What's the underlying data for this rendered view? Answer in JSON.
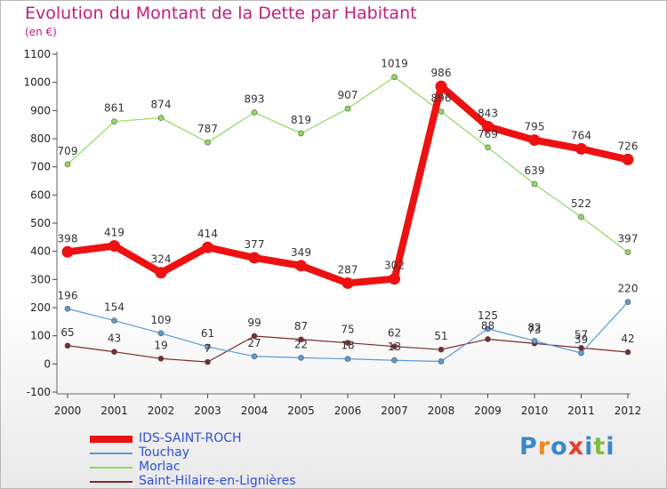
{
  "header": {
    "title": "Evolution du Montant de la Dette par Habitant",
    "unit": "(en €)"
  },
  "brand": {
    "letters": [
      "P",
      "r",
      "o",
      "x",
      "i",
      "t",
      "i"
    ],
    "colors": [
      "#3c87c9",
      "#f08a1e",
      "#3c87c9",
      "#e23e2a",
      "#3c87c9",
      "#7cbf3a",
      "#3c87c9"
    ]
  },
  "chart_data": {
    "type": "line",
    "title": "Evolution du Montant de la Dette par Habitant",
    "subtitle": "(en €)",
    "xlabel": "",
    "ylabel": "",
    "x": [
      "2000",
      "2001",
      "2002",
      "2003",
      "2004",
      "2005",
      "2006",
      "2007",
      "2008",
      "2009",
      "2010",
      "2011",
      "2012"
    ],
    "ylim": [
      -100,
      1100
    ],
    "yticks": [
      -100,
      0,
      100,
      200,
      300,
      400,
      500,
      600,
      700,
      800,
      900,
      1000,
      1100
    ],
    "grid": false,
    "legend": "bottom-left",
    "series": [
      {
        "name": "IDS-SAINT-ROCH",
        "color": "#ee1111",
        "values": [
          398,
          419,
          324,
          414,
          377,
          349,
          287,
          302,
          986,
          843,
          795,
          764,
          726
        ],
        "labels": [
          "398",
          "419",
          "324",
          "414",
          "377",
          "349",
          "287",
          "302",
          "986",
          "843",
          "795",
          "764",
          "726"
        ]
      },
      {
        "name": "Touchay",
        "color": "#5b9bd5",
        "values": [
          196,
          154,
          109,
          61,
          27,
          22,
          18,
          13,
          9,
          125,
          82,
          39,
          220
        ],
        "labels": [
          "196",
          "154",
          "109",
          "61",
          "27",
          "22",
          "18",
          "13",
          "",
          "125",
          "82",
          "39",
          "220"
        ]
      },
      {
        "name": "Morlac",
        "color": "#8fdb5a",
        "values": [
          709,
          861,
          874,
          787,
          893,
          819,
          907,
          1019,
          896,
          769,
          639,
          522,
          397
        ],
        "labels": [
          "709",
          "861",
          "874",
          "787",
          "893",
          "819",
          "907",
          "1019",
          "896",
          "769",
          "639",
          "522",
          "397"
        ]
      },
      {
        "name": "Saint-Hilaire-en-Lignières",
        "color": "#7a2b2b",
        "values": [
          65,
          43,
          19,
          7,
          99,
          87,
          75,
          62,
          51,
          88,
          73,
          57,
          42
        ],
        "labels": [
          "65",
          "43",
          "19",
          "7",
          "99",
          "87",
          "75",
          "62",
          "51",
          "88",
          "73",
          "57",
          "42"
        ]
      }
    ]
  }
}
